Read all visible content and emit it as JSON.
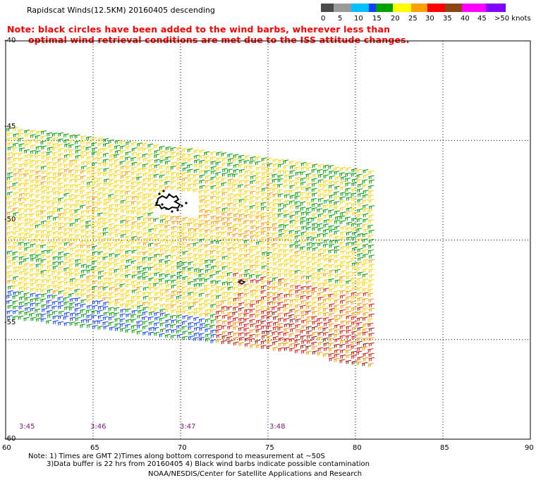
{
  "title": "Rapidscat Winds(12.5KM) 20160405 descending",
  "note_line1": "Note: black circles have been added to the wind barbs, wherever less than",
  "note_line2": "optimal wind retrieval conditions are met due to the ISS attitude changes.",
  "scale": {
    "labels": [
      "0",
      "5",
      "10",
      "15",
      "20",
      "25",
      "30",
      "35",
      "40",
      "45",
      ">50 knots"
    ],
    "colors": [
      "#4a4a4a",
      "#9a9a9a",
      "#00c0ff",
      "#1040ff",
      "#00a000",
      "#ffff00",
      "#ffa000",
      "#ff0000",
      "#8b4513",
      "#ff00ff",
      "#8000ff"
    ]
  },
  "lat_labels": [
    "-40",
    "-45",
    "-50",
    "-55",
    "-60"
  ],
  "lon_labels": [
    "60",
    "65",
    "70",
    "75",
    "80",
    "85",
    "90"
  ],
  "time_labels": [
    "3:45",
    "3:46",
    "3:47",
    "3:48"
  ],
  "footer": {
    "line1": "Note: 1) Times are GMT 2)Times along bottom correspond to measurement at ~50S",
    "line2": "3)Data buffer is 22 hrs from 20160405 4) Black wind barbs indicate possible contamination",
    "line3": "NOAA/NESDIS/Center for Satellite Applications and Research"
  },
  "map": {
    "lon_range": [
      60,
      90
    ],
    "lat_range": [
      -60,
      -40
    ],
    "grid": "dotted",
    "swath_lon_range": [
      60,
      81
    ],
    "wind_colors": {
      "yellow": "#ffd400",
      "orange": "#ff9a00",
      "green": "#00a000",
      "blue": "#1040ff",
      "red": "#e01000",
      "black": "#000000"
    }
  }
}
